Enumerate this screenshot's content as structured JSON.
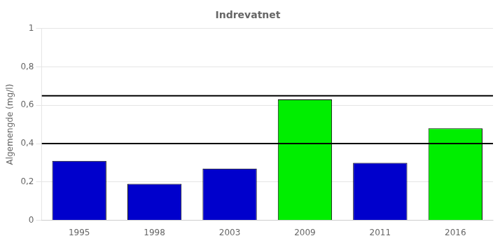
{
  "chart_data": {
    "type": "bar",
    "title": "Indrevatnet",
    "ylabel": "Algemengde (mg/l)",
    "categories": [
      "1995",
      "1998",
      "2003",
      "2009",
      "2011",
      "2016"
    ],
    "values": [
      0.31,
      0.19,
      0.27,
      0.63,
      0.3,
      0.48
    ],
    "colors": [
      "#0000cc",
      "#0000cc",
      "#0000cc",
      "#00ee00",
      "#0000cc",
      "#00ee00"
    ],
    "hlines": [
      0.4,
      0.65
    ],
    "ylim": [
      0,
      1
    ],
    "yticks": [
      0,
      {
        "value": 0.2,
        "label": "0,2"
      },
      {
        "value": 0.4,
        "label": "0,4"
      },
      {
        "value": 0.6,
        "label": "0,6"
      },
      {
        "value": 0.8,
        "label": "0,8"
      },
      1
    ],
    "grid": true
  }
}
